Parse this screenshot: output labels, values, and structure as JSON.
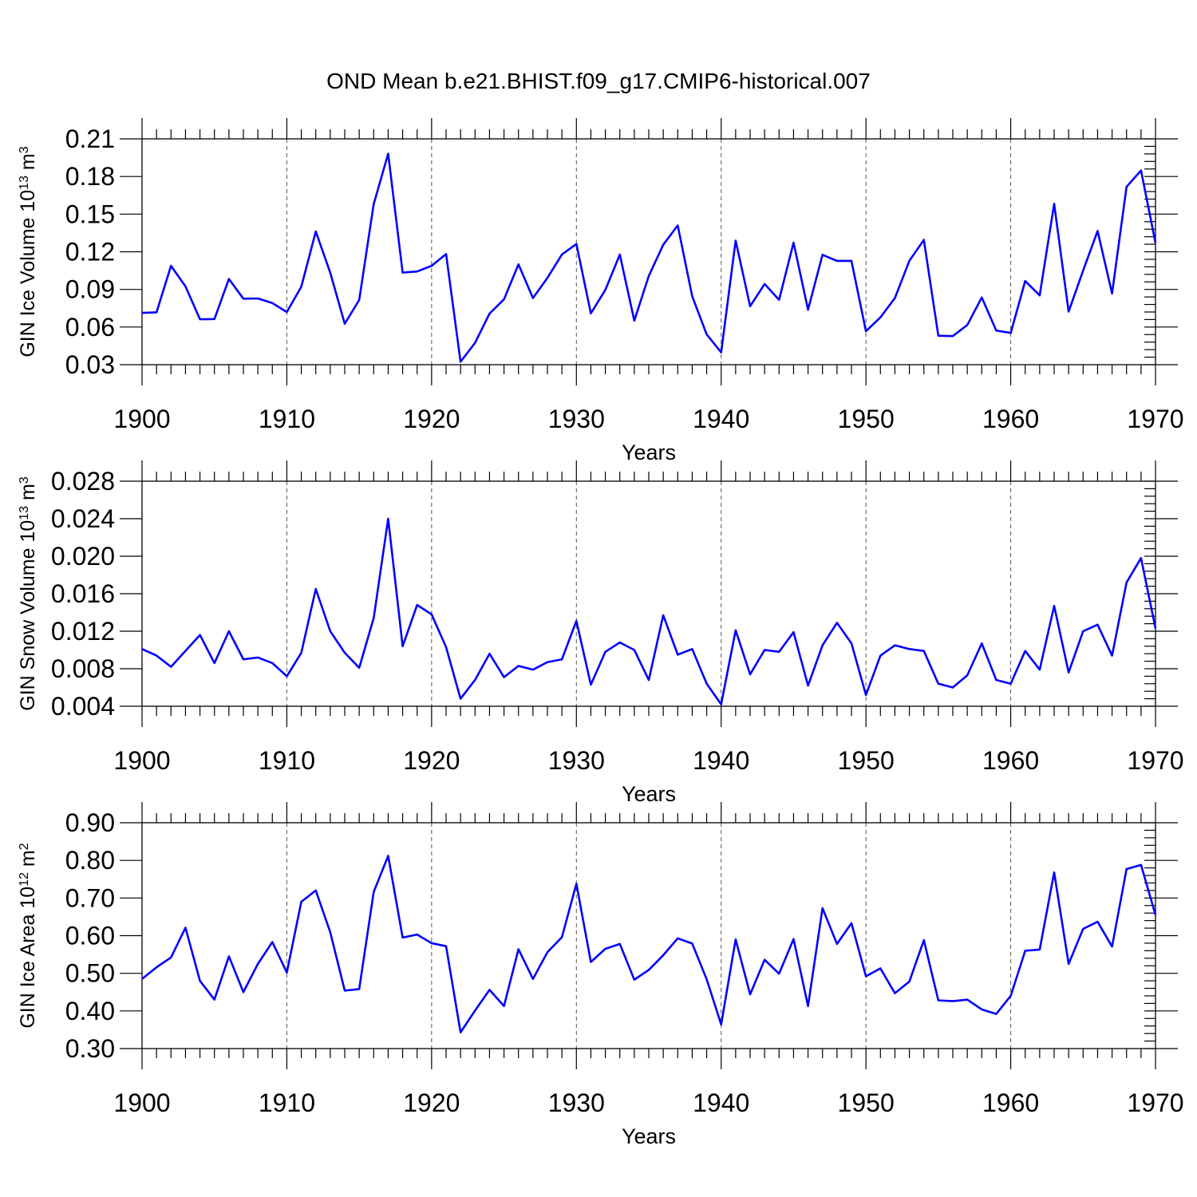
{
  "title": "OND Mean b.e21.BHIST.f09_g17.CMIP6-historical.007",
  "colors": {
    "series": "#0000ff",
    "axis": "#000000",
    "grid": "#555555"
  },
  "chart_data": [
    {
      "type": "line",
      "title": "OND Mean b.e21.BHIST.f09_g17.CMIP6-historical.007",
      "xlabel": "Years",
      "ylabel": {
        "base": "GIN Ice Volume 10",
        "exp": "13",
        "unit": " m",
        "unit_exp": "3"
      },
      "xlim": [
        1900,
        1970
      ],
      "ylim": [
        0.03,
        0.21
      ],
      "xticks": [
        1900,
        1910,
        1920,
        1930,
        1940,
        1950,
        1960,
        1970
      ],
      "xtick_labels": [
        "1900",
        "1910",
        "1920",
        "1930",
        "1940",
        "1950",
        "1960",
        "1970"
      ],
      "yticks": [
        0.03,
        0.06,
        0.09,
        0.12,
        0.15,
        0.18,
        0.21
      ],
      "ytick_labels": [
        "0.03",
        "0.06",
        "0.09",
        "0.12",
        "0.15",
        "0.18",
        "0.21"
      ],
      "grid_x": true,
      "x_start": 1900,
      "values": [
        0.0713,
        0.0717,
        0.1088,
        0.0924,
        0.0662,
        0.0664,
        0.0983,
        0.0826,
        0.0828,
        0.0791,
        0.072,
        0.0921,
        0.1362,
        0.1033,
        0.0626,
        0.0816,
        0.158,
        0.1982,
        0.1034,
        0.1043,
        0.1088,
        0.1182,
        0.0323,
        0.0474,
        0.0707,
        0.0821,
        0.11,
        0.0831,
        0.0992,
        0.1178,
        0.1262,
        0.0709,
        0.0896,
        0.1178,
        0.0651,
        0.1007,
        0.1256,
        0.141,
        0.0845,
        0.0541,
        0.0398,
        0.1289,
        0.0766,
        0.0943,
        0.0817,
        0.1273,
        0.0738,
        0.1176,
        0.1127,
        0.1127,
        0.0567,
        0.0677,
        0.0831,
        0.1128,
        0.1295,
        0.0531,
        0.0528,
        0.0616,
        0.0836,
        0.0572,
        0.0553,
        0.0967,
        0.0852,
        0.1582,
        0.0723,
        0.105,
        0.1366,
        0.0867,
        0.1718,
        0.1848,
        0.127
      ]
    },
    {
      "type": "line",
      "xlabel": "Years",
      "ylabel": {
        "base": "GIN Snow Volume 10",
        "exp": "13",
        "unit": " m",
        "unit_exp": "3"
      },
      "xlim": [
        1900,
        1970
      ],
      "ylim": [
        0.004,
        0.028
      ],
      "xticks": [
        1900,
        1910,
        1920,
        1930,
        1940,
        1950,
        1960,
        1970
      ],
      "xtick_labels": [
        "1900",
        "1910",
        "1920",
        "1930",
        "1940",
        "1950",
        "1960",
        "1970"
      ],
      "yticks": [
        0.004,
        0.008,
        0.012,
        0.016,
        0.02,
        0.024,
        0.028
      ],
      "ytick_labels": [
        "0.004",
        "0.008",
        "0.012",
        "0.016",
        "0.020",
        "0.024",
        "0.028"
      ],
      "grid_x": true,
      "x_start": 1900,
      "values": [
        0.0101,
        0.0094,
        0.0082,
        0.0099,
        0.0116,
        0.0086,
        0.012,
        0.009,
        0.0092,
        0.0086,
        0.0072,
        0.0097,
        0.0165,
        0.012,
        0.0097,
        0.0081,
        0.0134,
        0.024,
        0.0104,
        0.0148,
        0.0138,
        0.0103,
        0.0048,
        0.0068,
        0.0096,
        0.0071,
        0.0083,
        0.0079,
        0.0087,
        0.009,
        0.0131,
        0.0063,
        0.0098,
        0.0108,
        0.01,
        0.0068,
        0.0137,
        0.0095,
        0.0101,
        0.0064,
        0.0042,
        0.0121,
        0.0074,
        0.01,
        0.0098,
        0.0119,
        0.0062,
        0.0105,
        0.0129,
        0.0107,
        0.0052,
        0.0094,
        0.0105,
        0.0101,
        0.0099,
        0.0064,
        0.006,
        0.0073,
        0.0107,
        0.0068,
        0.0064,
        0.0099,
        0.0079,
        0.0147,
        0.0076,
        0.012,
        0.0127,
        0.0094,
        0.0172,
        0.0198,
        0.0123
      ]
    },
    {
      "type": "line",
      "xlabel": "Years",
      "ylabel": {
        "base": "GIN Ice Area 10",
        "exp": "12",
        "unit": " m",
        "unit_exp": "2"
      },
      "xlim": [
        1900,
        1970
      ],
      "ylim": [
        0.3,
        0.9
      ],
      "xticks": [
        1900,
        1910,
        1920,
        1930,
        1940,
        1950,
        1960,
        1970
      ],
      "xtick_labels": [
        "1900",
        "1910",
        "1920",
        "1930",
        "1940",
        "1950",
        "1960",
        "1970"
      ],
      "yticks": [
        0.3,
        0.4,
        0.5,
        0.6,
        0.7,
        0.8,
        0.9
      ],
      "ytick_labels": [
        "0.30",
        "0.40",
        "0.50",
        "0.60",
        "0.70",
        "0.80",
        "0.90"
      ],
      "grid_x": true,
      "x_start": 1900,
      "values": [
        0.485,
        0.516,
        0.542,
        0.621,
        0.48,
        0.43,
        0.545,
        0.45,
        0.525,
        0.583,
        0.502,
        0.69,
        0.72,
        0.609,
        0.454,
        0.458,
        0.716,
        0.812,
        0.595,
        0.603,
        0.58,
        0.572,
        0.343,
        0.401,
        0.456,
        0.413,
        0.564,
        0.485,
        0.556,
        0.596,
        0.738,
        0.53,
        0.565,
        0.578,
        0.483,
        0.509,
        0.548,
        0.593,
        0.579,
        0.484,
        0.364,
        0.59,
        0.444,
        0.536,
        0.499,
        0.591,
        0.413,
        0.673,
        0.578,
        0.633,
        0.492,
        0.513,
        0.447,
        0.478,
        0.588,
        0.428,
        0.426,
        0.43,
        0.404,
        0.392,
        0.44,
        0.56,
        0.563,
        0.768,
        0.525,
        0.618,
        0.637,
        0.571,
        0.777,
        0.788,
        0.655
      ]
    }
  ]
}
